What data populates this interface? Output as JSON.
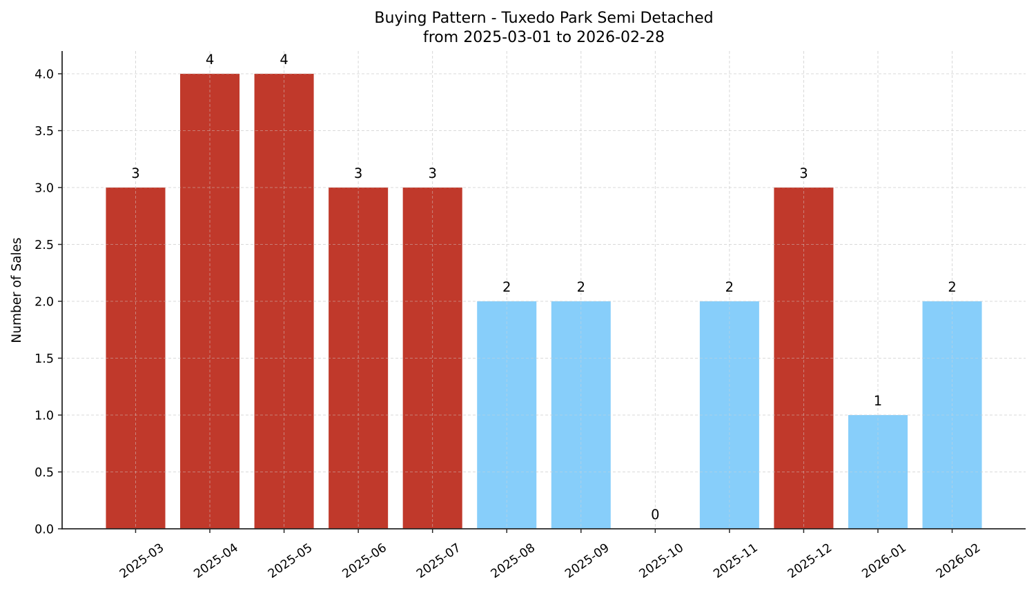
{
  "chart_data": {
    "type": "bar",
    "title": "Buying Pattern - Tuxedo Park Semi Detached",
    "subtitle": "from 2025-03-01 to 2026-02-28",
    "xlabel": "",
    "ylabel": "Number of Sales",
    "categories": [
      "2025-03",
      "2025-04",
      "2025-05",
      "2025-06",
      "2025-07",
      "2025-08",
      "2025-09",
      "2025-10",
      "2025-11",
      "2025-12",
      "2026-01",
      "2026-02"
    ],
    "values": [
      3,
      4,
      4,
      3,
      3,
      2,
      2,
      0,
      2,
      3,
      1,
      2
    ],
    "bar_colors": [
      "#c0392b",
      "#c0392b",
      "#c0392b",
      "#c0392b",
      "#c0392b",
      "#87cefa",
      "#87cefa",
      "#87cefa",
      "#87cefa",
      "#c0392b",
      "#87cefa",
      "#87cefa"
    ],
    "data_labels": [
      "3",
      "4",
      "4",
      "3",
      "3",
      "2",
      "2",
      "0",
      "2",
      "3",
      "1",
      "2"
    ],
    "ylim": [
      0,
      4.2
    ],
    "yticks": [
      0.0,
      0.5,
      1.0,
      1.5,
      2.0,
      2.5,
      3.0,
      3.5,
      4.0
    ],
    "ytick_labels": [
      "0.0",
      "0.5",
      "1.0",
      "1.5",
      "2.0",
      "2.5",
      "3.0",
      "3.5",
      "4.0"
    ],
    "xtick_rotation": 35,
    "grid": true,
    "grid_style": "dashed",
    "legend": null,
    "colors": {
      "high": "#c0392b",
      "low": "#87cefa",
      "grid": "#d3d3d3",
      "axis": "#262626"
    }
  }
}
